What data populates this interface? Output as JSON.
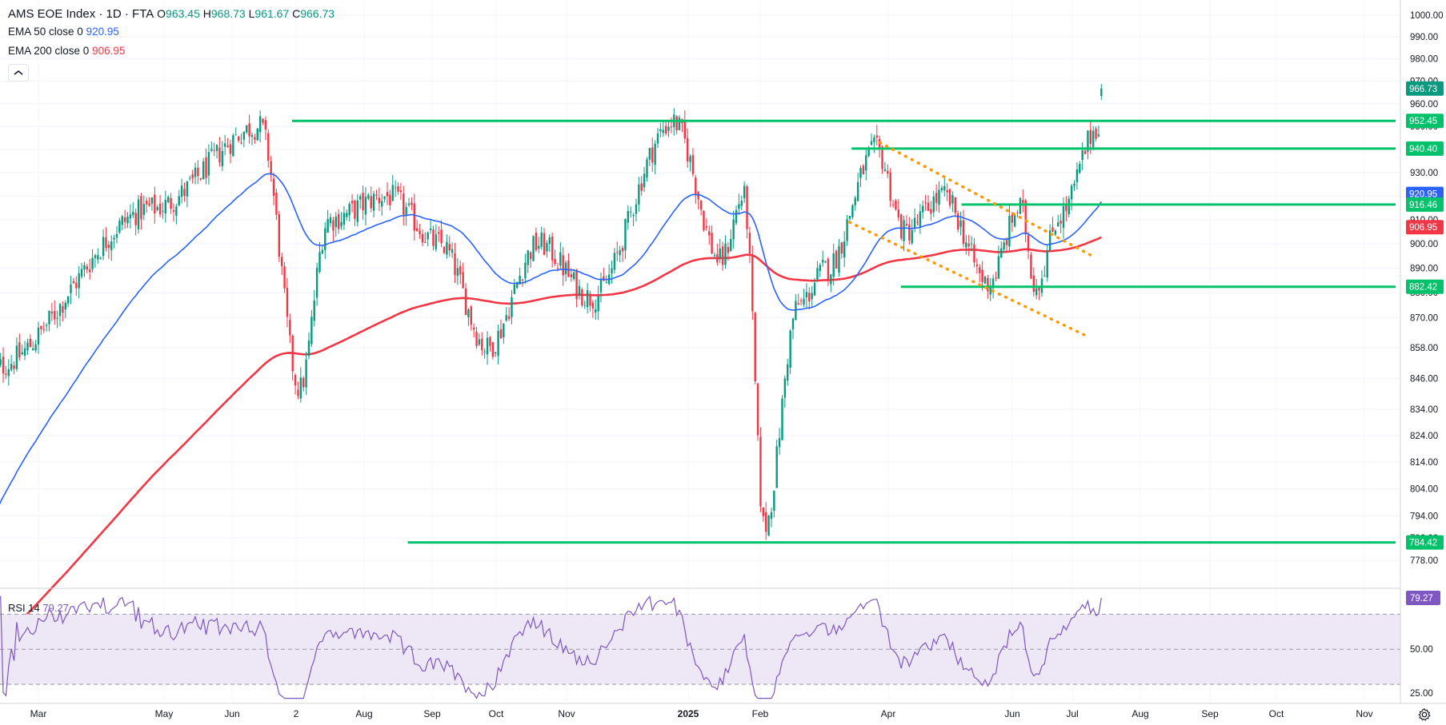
{
  "header": {
    "symbol": "AMS EOE Index · 1D · FTA",
    "open_label": "O",
    "open": "963.45",
    "high_label": "H",
    "high": "968.73",
    "low_label": "L",
    "low": "961.67",
    "close_label": "C",
    "close": "966.73"
  },
  "indicators": {
    "ema50_label": "EMA 50 close 0",
    "ema50_value": "920.95",
    "ema200_label": "EMA 200 close 0",
    "ema200_value": "906.95",
    "rsi_label": "RSI 14",
    "rsi_value": "79.27"
  },
  "colors": {
    "up": "#089981",
    "down": "#f23645",
    "ema50": "#2962ff",
    "ema200": "#f23645",
    "support": "#00c26a",
    "channel": "#ff9800",
    "rsi": "#7e57c2",
    "rsi_band": "#ede7f6"
  },
  "chart_data": [
    {
      "type": "candlestick",
      "title": "AMS EOE Index · 1D · FTA",
      "x_labels": [
        "Mar",
        "May",
        "Jun",
        "2",
        "Aug",
        "Sep",
        "Oct",
        "Nov",
        "2025",
        "Feb",
        "Apr",
        "Jun",
        "Jul",
        "Aug",
        "Sep",
        "Oct",
        "Nov"
      ],
      "y_ticks": [
        1000,
        990,
        980,
        970,
        960,
        950,
        940,
        930,
        920,
        910,
        900,
        890,
        880,
        870,
        858,
        846,
        834,
        824,
        814,
        804,
        794,
        786,
        778
      ],
      "y_scale": "log",
      "ylim": [
        772,
        1004
      ],
      "price_labels": [
        {
          "value": "966.73",
          "kind": "last"
        },
        {
          "value": "952.45",
          "kind": "level"
        },
        {
          "value": "940.40",
          "kind": "level"
        },
        {
          "value": "920.95",
          "kind": "ema50"
        },
        {
          "value": "916.46",
          "kind": "level"
        },
        {
          "value": "906.95",
          "kind": "ema200"
        },
        {
          "value": "882.42",
          "kind": "level"
        },
        {
          "value": "784.42",
          "kind": "level"
        }
      ],
      "horizontal_levels": [
        {
          "price": 952.45,
          "from": "2024-08-01",
          "to": "right-edge"
        },
        {
          "price": 940.4,
          "from": "2025-05-23",
          "to": "right-edge"
        },
        {
          "price": 916.46,
          "from": "2025-07-20",
          "to": "right-edge"
        },
        {
          "price": 882.42,
          "from": "2025-06-18",
          "to": "right-edge"
        },
        {
          "price": 784.42,
          "from": "2024-10-01",
          "to": "right-edge"
        }
      ],
      "channel_lines": [
        {
          "from": [
            "2025-06-07",
            943
          ],
          "to": [
            "2025-09-27",
            895
          ]
        },
        {
          "from": [
            "2025-05-22",
            909
          ],
          "to": [
            "2025-09-23",
            863
          ]
        }
      ],
      "key_points": [
        {
          "date": "2024-02-25",
          "close": 850
        },
        {
          "date": "2024-05-20",
          "close": 915
        },
        {
          "date": "2024-07-15",
          "close": 950
        },
        {
          "date": "2024-08-05",
          "close": 842
        },
        {
          "date": "2024-08-20",
          "close": 910
        },
        {
          "date": "2024-09-20",
          "close": 920
        },
        {
          "date": "2024-10-18",
          "close": 900
        },
        {
          "date": "2024-11-12",
          "close": 858
        },
        {
          "date": "2024-12-09",
          "close": 900
        },
        {
          "date": "2025-01-06",
          "close": 878
        },
        {
          "date": "2025-02-18",
          "close": 952
        },
        {
          "date": "2025-03-15",
          "close": 893
        },
        {
          "date": "2025-03-27",
          "close": 920
        },
        {
          "date": "2025-04-07",
          "close": 790
        },
        {
          "date": "2025-04-25",
          "close": 875
        },
        {
          "date": "2025-05-10",
          "close": 890
        },
        {
          "date": "2025-06-05",
          "close": 940
        },
        {
          "date": "2025-06-20",
          "close": 905
        },
        {
          "date": "2025-07-10",
          "close": 920
        },
        {
          "date": "2025-08-03",
          "close": 884
        },
        {
          "date": "2025-08-20",
          "close": 915
        },
        {
          "date": "2025-08-28",
          "close": 883
        },
        {
          "date": "2025-09-10",
          "close": 912
        },
        {
          "date": "2025-09-30",
          "close": 950
        },
        {
          "date": "2025-10-03",
          "close": 966.73
        }
      ],
      "series": [
        {
          "name": "EMA 50 close 0",
          "last": 920.95
        },
        {
          "name": "EMA 200 close 0",
          "last": 906.95
        }
      ]
    },
    {
      "type": "line",
      "title": "RSI 14",
      "y_ticks": [
        "25.00",
        "50.00"
      ],
      "band": [
        30,
        70
      ],
      "ylim": [
        20,
        82
      ],
      "last_value": "79.27"
    }
  ]
}
